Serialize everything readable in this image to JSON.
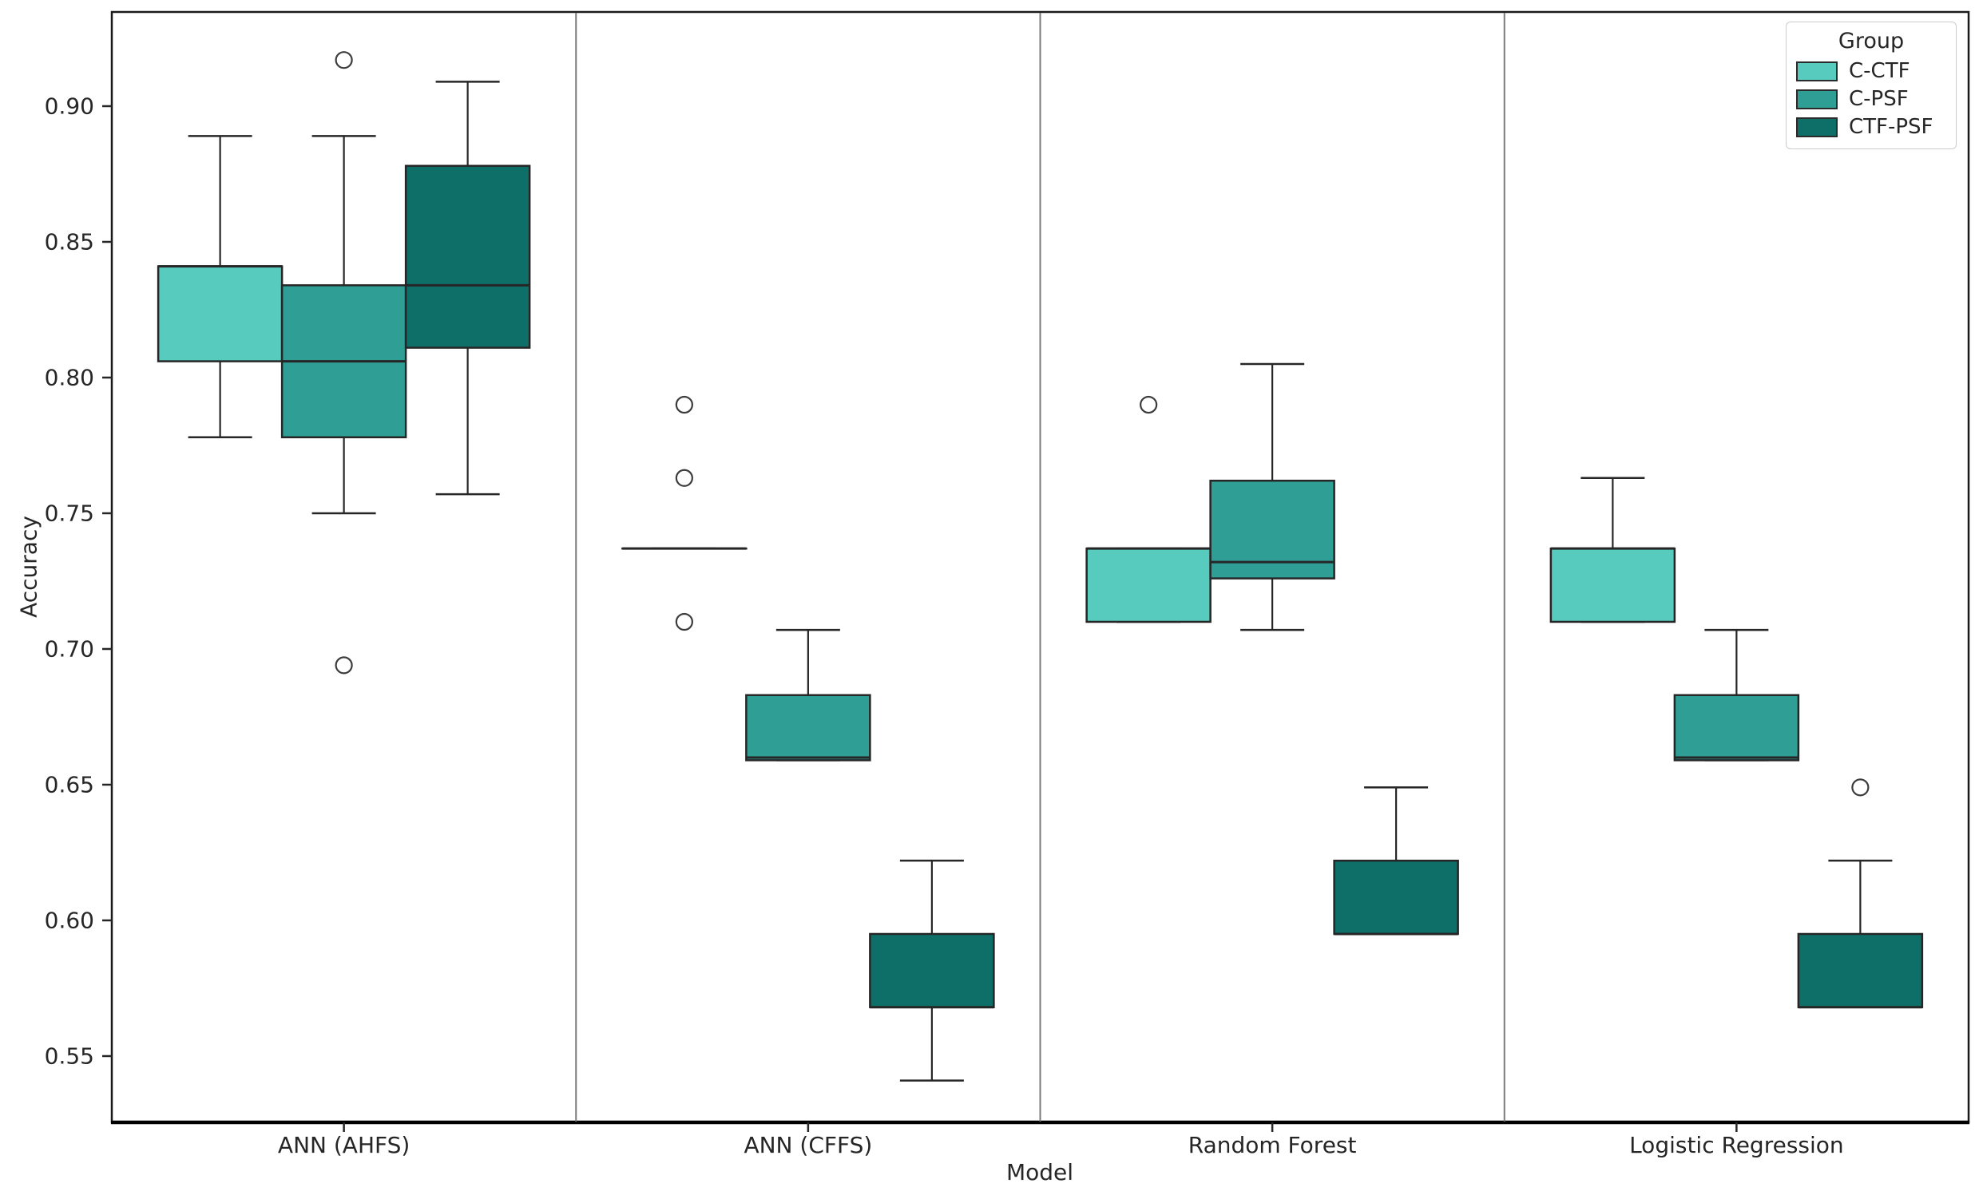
{
  "figure": {
    "background": "#ffffff",
    "border_color": "#1a1a1a",
    "separator_color": "#7a7a7a",
    "box_edge_color": "#262626",
    "outlier_edge_color": "#3c3c3c",
    "text_color": "#262626"
  },
  "legend": {
    "title": "Group",
    "items": [
      {
        "label": "C-CTF",
        "color": "#57cbbd"
      },
      {
        "label": "C-PSF",
        "color": "#2f9f96"
      },
      {
        "label": "CTF-PSF",
        "color": "#0d6f68"
      }
    ]
  },
  "chart_data": {
    "type": "boxplot",
    "title": "",
    "xlabel": "Model",
    "ylabel": "Accuracy",
    "grid": false,
    "legend_position": "upper right",
    "ylim": [
      0.526,
      0.935
    ],
    "categories": [
      "ANN (AHFS)",
      "ANN (CFFS)",
      "Random Forest",
      "Logistic Regression"
    ],
    "y_ticks": [
      {
        "label": "0.90",
        "value": 0.9
      },
      {
        "label": "0.85",
        "value": 0.85
      },
      {
        "label": "0.80",
        "value": 0.8
      },
      {
        "label": "0.75",
        "value": 0.75
      },
      {
        "label": "0.70",
        "value": 0.7
      },
      {
        "label": "0.65",
        "value": 0.65
      },
      {
        "label": "0.60",
        "value": 0.6
      },
      {
        "label": "0.55",
        "value": 0.55
      }
    ],
    "series": [
      {
        "name": "C-CTF",
        "color": "#57cbbd",
        "boxes": [
          {
            "category": "ANN (AHFS)",
            "whisker_low": 0.778,
            "q1": 0.806,
            "median": 0.841,
            "q3": 0.841,
            "whisker_high": 0.889,
            "outliers": []
          },
          {
            "category": "ANN (CFFS)",
            "whisker_low": 0.737,
            "q1": 0.737,
            "median": 0.737,
            "q3": 0.737,
            "whisker_high": 0.737,
            "outliers": [
              0.79,
              0.763,
              0.71
            ]
          },
          {
            "category": "Random Forest",
            "whisker_low": 0.71,
            "q1": 0.71,
            "median": 0.737,
            "q3": 0.737,
            "whisker_high": 0.737,
            "outliers": [
              0.79
            ]
          },
          {
            "category": "Logistic Regression",
            "whisker_low": 0.71,
            "q1": 0.71,
            "median": 0.737,
            "q3": 0.737,
            "whisker_high": 0.763,
            "outliers": []
          }
        ]
      },
      {
        "name": "C-PSF",
        "color": "#2f9f96",
        "boxes": [
          {
            "category": "ANN (AHFS)",
            "whisker_low": 0.75,
            "q1": 0.778,
            "median": 0.806,
            "q3": 0.834,
            "whisker_high": 0.889,
            "outliers": [
              0.917,
              0.694
            ]
          },
          {
            "category": "ANN (CFFS)",
            "whisker_low": 0.659,
            "q1": 0.659,
            "median": 0.66,
            "q3": 0.683,
            "whisker_high": 0.707,
            "outliers": []
          },
          {
            "category": "Random Forest",
            "whisker_low": 0.707,
            "q1": 0.726,
            "median": 0.732,
            "q3": 0.762,
            "whisker_high": 0.805,
            "outliers": []
          },
          {
            "category": "Logistic Regression",
            "whisker_low": 0.659,
            "q1": 0.659,
            "median": 0.66,
            "q3": 0.683,
            "whisker_high": 0.707,
            "outliers": []
          }
        ]
      },
      {
        "name": "CTF-PSF",
        "color": "#0d6f68",
        "boxes": [
          {
            "category": "ANN (AHFS)",
            "whisker_low": 0.757,
            "q1": 0.811,
            "median": 0.834,
            "q3": 0.878,
            "whisker_high": 0.909,
            "outliers": []
          },
          {
            "category": "ANN (CFFS)",
            "whisker_low": 0.541,
            "q1": 0.568,
            "median": 0.568,
            "q3": 0.595,
            "whisker_high": 0.622,
            "outliers": []
          },
          {
            "category": "Random Forest",
            "whisker_low": 0.595,
            "q1": 0.595,
            "median": 0.595,
            "q3": 0.622,
            "whisker_high": 0.649,
            "outliers": []
          },
          {
            "category": "Logistic Regression",
            "whisker_low": 0.568,
            "q1": 0.568,
            "median": 0.568,
            "q3": 0.595,
            "whisker_high": 0.622,
            "outliers": [
              0.649
            ]
          }
        ]
      }
    ]
  }
}
